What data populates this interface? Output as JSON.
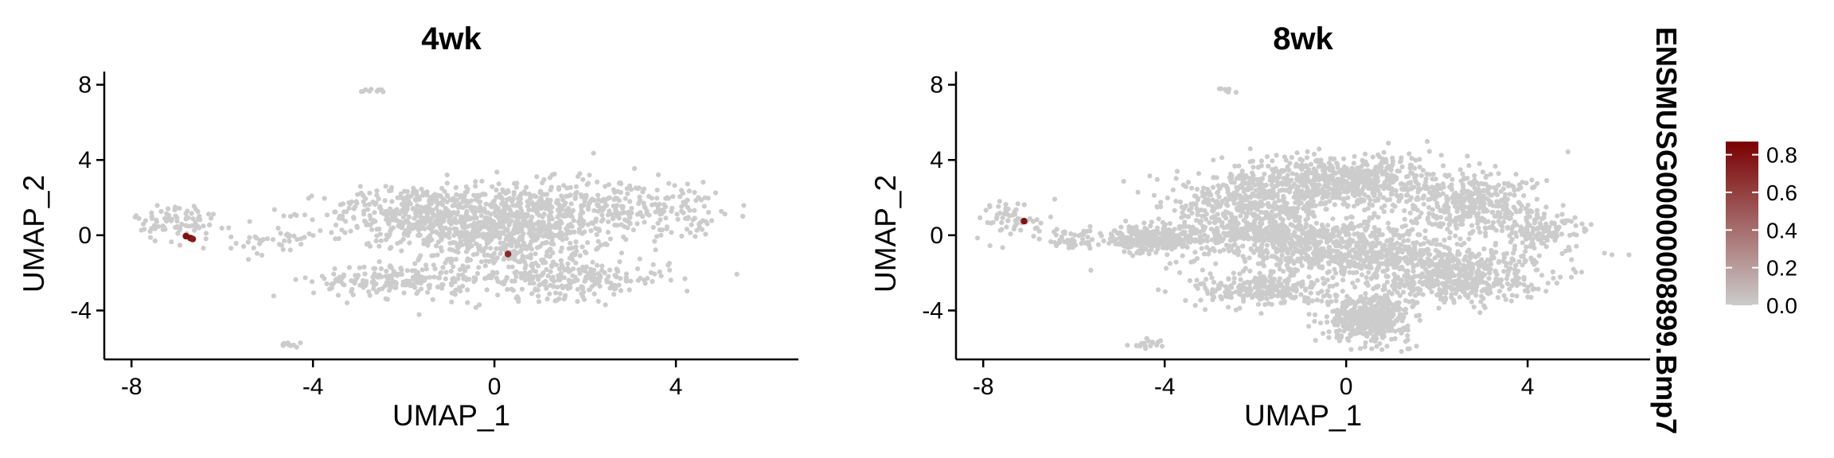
{
  "feature_title": "ENSMUSG00000008899.Bmp7",
  "colors": {
    "low": "#cccccc",
    "high": "#7a0000",
    "axis": "#000000"
  },
  "chart_data": [
    {
      "type": "scatter",
      "title": "4wk",
      "xlabel": "UMAP_1",
      "ylabel": "UMAP_2",
      "xlim": [
        -8.6,
        6.7
      ],
      "ylim": [
        -6.6,
        8.7
      ],
      "xticks": [
        -8,
        -4,
        0,
        4
      ],
      "yticks": [
        -4,
        0,
        4,
        8
      ],
      "background_clusters": [
        {
          "cx": 0.2,
          "cy": 0.5,
          "sx": 1.6,
          "sy": 1.5,
          "n": 900
        },
        {
          "cx": -1.8,
          "cy": 1.2,
          "sx": 1.3,
          "sy": 0.9,
          "n": 260
        },
        {
          "cx": 1.5,
          "cy": -2.3,
          "sx": 1.6,
          "sy": 0.7,
          "n": 260
        },
        {
          "cx": -2.2,
          "cy": -2.4,
          "sx": 1.2,
          "sy": 0.6,
          "n": 180
        },
        {
          "cx": 3.0,
          "cy": 1.6,
          "sx": 1.3,
          "sy": 0.9,
          "n": 200
        },
        {
          "cx": -7.0,
          "cy": 0.7,
          "sx": 0.6,
          "sy": 0.7,
          "n": 90
        },
        {
          "cx": -4.8,
          "cy": -0.3,
          "sx": 0.7,
          "sy": 0.5,
          "n": 45
        },
        {
          "cx": -4.5,
          "cy": -5.8,
          "sx": 0.15,
          "sy": 0.1,
          "n": 12
        },
        {
          "cx": -2.7,
          "cy": 7.7,
          "sx": 0.2,
          "sy": 0.08,
          "n": 10
        },
        {
          "cx": 4.6,
          "cy": 0.4,
          "sx": 0.4,
          "sy": 0.4,
          "n": 12
        }
      ],
      "expressing_points": [
        {
          "x": -6.8,
          "y": -0.05,
          "value": 0.8
        },
        {
          "x": -6.7,
          "y": -0.15,
          "value": 0.8
        },
        {
          "x": -6.65,
          "y": -0.2,
          "value": 0.75
        },
        {
          "x": 0.3,
          "y": -1.0,
          "value": 0.7
        }
      ]
    },
    {
      "type": "scatter",
      "title": "8wk",
      "xlabel": "UMAP_1",
      "ylabel": "UMAP_2",
      "xlim": [
        -8.6,
        6.7
      ],
      "ylim": [
        -6.6,
        8.7
      ],
      "xticks": [
        -8,
        -4,
        0,
        4
      ],
      "yticks": [
        -4,
        0,
        4,
        8
      ],
      "background_clusters": [
        {
          "cx": 0.0,
          "cy": 2.8,
          "sx": 1.8,
          "sy": 1.0,
          "n": 700
        },
        {
          "cx": -2.2,
          "cy": 1.5,
          "sx": 1.2,
          "sy": 1.1,
          "n": 400
        },
        {
          "cx": -1.2,
          "cy": 0.0,
          "sx": 2.0,
          "sy": 0.5,
          "n": 500
        },
        {
          "cx": 0.6,
          "cy": -1.2,
          "sx": 2.3,
          "sy": 0.6,
          "n": 550
        },
        {
          "cx": 0.5,
          "cy": -4.4,
          "sx": 0.6,
          "sy": 0.8,
          "n": 450
        },
        {
          "cx": -1.8,
          "cy": -2.9,
          "sx": 1.0,
          "sy": 0.6,
          "n": 250
        },
        {
          "cx": 2.3,
          "cy": -2.4,
          "sx": 1.3,
          "sy": 0.8,
          "n": 450
        },
        {
          "cx": 2.8,
          "cy": 1.6,
          "sx": 1.0,
          "sy": 1.0,
          "n": 350
        },
        {
          "cx": 4.3,
          "cy": 0.2,
          "sx": 0.7,
          "sy": 0.6,
          "n": 120
        },
        {
          "cx": -4.2,
          "cy": -0.2,
          "sx": 0.6,
          "sy": 0.5,
          "n": 220
        },
        {
          "cx": -7.3,
          "cy": 0.8,
          "sx": 0.5,
          "sy": 0.7,
          "n": 60
        },
        {
          "cx": -6.0,
          "cy": -0.2,
          "sx": 0.5,
          "sy": 0.4,
          "n": 50
        },
        {
          "cx": -4.4,
          "cy": -5.8,
          "sx": 0.3,
          "sy": 0.15,
          "n": 20
        },
        {
          "cx": -2.6,
          "cy": 7.7,
          "sx": 0.15,
          "sy": 0.15,
          "n": 8
        }
      ],
      "expressing_points": [
        {
          "x": -7.1,
          "y": 0.75,
          "value": 0.8
        }
      ]
    }
  ],
  "legend": {
    "type": "colorbar",
    "min": 0,
    "max": 0.87,
    "ticks": [
      "0.0",
      "0.2",
      "0.4",
      "0.6",
      "0.8"
    ]
  }
}
